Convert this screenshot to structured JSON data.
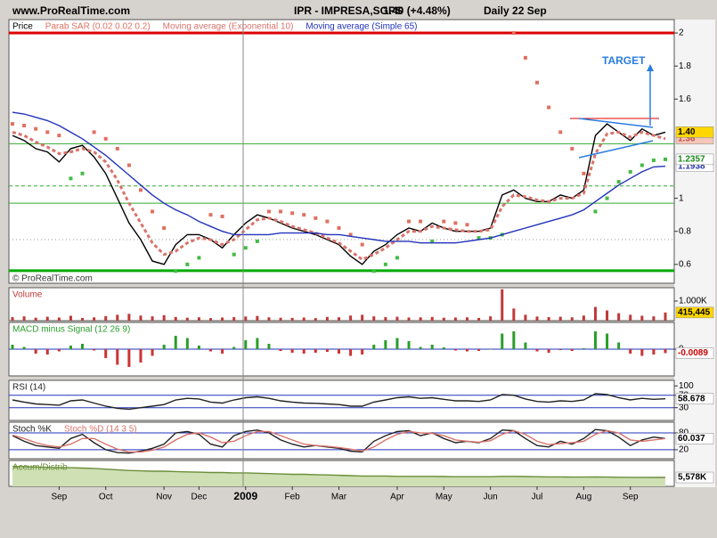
{
  "header": {
    "site": "www.ProRealTime.com",
    "symbol": "IPR - IMPRESA,SGPS",
    "quote": "1.40 (+4.48%)",
    "period": "Daily 22 Sep"
  },
  "chart_data": [
    {
      "type": "line",
      "watermark": "© ProRealTime.com",
      "annotation": "TARGET",
      "categories": [
        null,
        null,
        null,
        null,
        "Sep",
        null,
        null,
        null,
        "Oct",
        null,
        null,
        null,
        null,
        "Nov",
        null,
        null,
        "Dec",
        null,
        null,
        null,
        "2009",
        null,
        null,
        null,
        "Feb",
        null,
        null,
        null,
        "Mar",
        null,
        null,
        null,
        null,
        "Apr",
        null,
        null,
        null,
        "May",
        null,
        null,
        null,
        "Jun",
        null,
        null,
        null,
        "Jul",
        null,
        null,
        null,
        "Aug",
        null,
        null,
        null,
        "Sep",
        null,
        null,
        null
      ],
      "ylim": [
        0.486,
        2.081
      ],
      "yticks": [
        0.6,
        0.8,
        1,
        1.6,
        1.8,
        2
      ],
      "series": [
        {
          "name": "Price",
          "color": "#000000",
          "values": [
            1.38,
            1.35,
            1.3,
            1.28,
            1.22,
            1.3,
            1.32,
            1.25,
            1.15,
            1.0,
            0.85,
            0.75,
            0.62,
            0.6,
            0.72,
            0.78,
            0.78,
            0.75,
            0.7,
            0.78,
            0.85,
            0.9,
            0.88,
            0.85,
            0.82,
            0.8,
            0.78,
            0.75,
            0.72,
            0.65,
            0.6,
            0.68,
            0.72,
            0.78,
            0.82,
            0.8,
            0.85,
            0.82,
            0.8,
            0.8,
            0.8,
            0.82,
            1.02,
            1.05,
            1.0,
            0.98,
            0.98,
            1.02,
            1.0,
            1.05,
            1.38,
            1.45,
            1.4,
            1.35,
            1.42,
            1.38,
            1.4
          ]
        },
        {
          "name": "Parab SAR (0.02 0.02 0.2)",
          "color": "#e07060",
          "color_below": "#44bb44",
          "style": "dots",
          "values": [
            1.45,
            1.44,
            1.42,
            1.4,
            1.38,
            1.12,
            1.15,
            1.4,
            1.36,
            1.3,
            1.2,
            1.05,
            0.92,
            0.82,
            0.56,
            0.6,
            0.64,
            0.9,
            0.89,
            0.66,
            0.7,
            0.74,
            0.92,
            0.92,
            0.91,
            0.9,
            0.88,
            0.86,
            0.82,
            0.78,
            0.72,
            0.56,
            0.6,
            0.64,
            0.86,
            0.86,
            0.74,
            0.86,
            0.85,
            0.84,
            0.76,
            0.76,
            0.78,
            2.0,
            1.85,
            1.7,
            1.55,
            1.4,
            1.3,
            1.15,
            0.92,
            1.0,
            1.1,
            1.16,
            1.2,
            1.23,
            1.2357
          ]
        },
        {
          "name": "Moving average (Exponential 10)",
          "color": "#d9736b",
          "style": "dashed",
          "values": [
            1.4,
            1.38,
            1.34,
            1.31,
            1.27,
            1.28,
            1.3,
            1.28,
            1.22,
            1.11,
            0.97,
            0.85,
            0.73,
            0.66,
            0.68,
            0.73,
            0.76,
            0.75,
            0.72,
            0.75,
            0.81,
            0.87,
            0.88,
            0.86,
            0.83,
            0.81,
            0.79,
            0.76,
            0.73,
            0.68,
            0.63,
            0.66,
            0.7,
            0.75,
            0.8,
            0.8,
            0.83,
            0.82,
            0.81,
            0.8,
            0.8,
            0.81,
            0.95,
            1.02,
            1.01,
            0.99,
            0.98,
            1.0,
            1.0,
            1.03,
            1.27,
            1.39,
            1.4,
            1.37,
            1.4,
            1.38,
            1.36
          ]
        },
        {
          "name": "Moving average (Simple 65)",
          "color": "#2233bb",
          "values": [
            1.52,
            1.51,
            1.49,
            1.47,
            1.44,
            1.4,
            1.36,
            1.31,
            1.26,
            1.2,
            1.14,
            1.08,
            1.02,
            0.97,
            0.93,
            0.9,
            0.86,
            0.83,
            0.8,
            0.78,
            0.78,
            0.78,
            0.78,
            0.79,
            0.79,
            0.79,
            0.79,
            0.78,
            0.78,
            0.77,
            0.76,
            0.75,
            0.74,
            0.74,
            0.74,
            0.73,
            0.73,
            0.73,
            0.73,
            0.74,
            0.75,
            0.76,
            0.78,
            0.8,
            0.82,
            0.84,
            0.86,
            0.88,
            0.9,
            0.93,
            0.98,
            1.03,
            1.08,
            1.12,
            1.16,
            1.19,
            1.194
          ]
        }
      ],
      "hlines": [
        {
          "value": 2,
          "color": "#dd0000"
        },
        {
          "value": 0.562,
          "color": "#00aa00"
        },
        {
          "value": 1.33,
          "color": "#33aa33"
        },
        {
          "value": 0.97,
          "color": "#33aa33"
        },
        {
          "value": 1.075,
          "color": "#33aa33",
          "style": "dashed"
        },
        {
          "value": 0.75,
          "color": "#999999",
          "style": "dotted"
        }
      ],
      "markers": [
        {
          "value": 1.36,
          "label": "1.36",
          "color": "#c0504d",
          "bg": "#f4c7b8"
        },
        {
          "value": 1.4,
          "label": "1.40",
          "color": "#000000",
          "bg": "#ffd700"
        },
        {
          "value": 1.1938,
          "label": "1.1938",
          "color": "#2233aa",
          "bg": "#ffffff"
        },
        {
          "value": 1.2357,
          "label": "1.2357",
          "color": "#1a8a1a",
          "bg": "#ffffff"
        }
      ]
    },
    {
      "type": "bar",
      "ylim": [
        0,
        1680000
      ],
      "yticks": [
        {
          "value": 1000000,
          "label": "1.000K"
        }
      ],
      "series": [
        {
          "name": "Volume",
          "color": "#c03838",
          "values": [
            180000,
            220000,
            150000,
            200000,
            160000,
            250000,
            140000,
            170000,
            230000,
            300000,
            350000,
            260000,
            220000,
            280000,
            190000,
            150000,
            170000,
            130000,
            160000,
            180000,
            210000,
            240000,
            170000,
            150000,
            140000,
            160000,
            130000,
            190000,
            170000,
            260000,
            300000,
            220000,
            180000,
            200000,
            160000,
            170000,
            190000,
            150000,
            160000,
            170000,
            140000,
            220000,
            1600000,
            620000,
            300000,
            210000,
            180000,
            200000,
            170000,
            260000,
            700000,
            520000,
            380000,
            300000,
            250000,
            220000,
            415445
          ]
        }
      ],
      "markers": [
        {
          "value": 415445,
          "label": "415,445",
          "color": "#000000",
          "bg": "#ffd700"
        }
      ]
    },
    {
      "type": "bar",
      "ylim": [
        -0.06,
        0.06
      ],
      "yticks": [
        0
      ],
      "series": [
        {
          "name": "MACD minus Signal (12 26 9)",
          "color": "#2a9d2a",
          "color_negative": "#cc3333",
          "values": [
            0.01,
            0.005,
            -0.01,
            -0.012,
            -0.005,
            0.008,
            0.012,
            -0.003,
            -0.02,
            -0.035,
            -0.04,
            -0.03,
            -0.015,
            0.01,
            0.03,
            0.025,
            0.008,
            -0.005,
            -0.01,
            0.005,
            0.02,
            0.025,
            0.012,
            -0.004,
            -0.008,
            -0.01,
            -0.008,
            -0.006,
            -0.01,
            -0.015,
            -0.012,
            0.01,
            0.02,
            0.025,
            0.018,
            0.005,
            0.01,
            0.004,
            -0.003,
            -0.005,
            -0.004,
            0.0,
            0.035,
            0.04,
            0.015,
            -0.005,
            -0.008,
            -0.002,
            -0.004,
            0.002,
            0.04,
            0.035,
            0.015,
            -0.01,
            -0.015,
            -0.012,
            -0.0089
          ]
        }
      ],
      "hlines": [
        {
          "value": 0,
          "color": "#2233bb"
        }
      ],
      "markers": [
        {
          "value": -0.0089,
          "label": "-0.0089",
          "color": "#cc0000",
          "bg": "#ffffff"
        }
      ]
    },
    {
      "type": "line",
      "ylim": [
        -11,
        118
      ],
      "yticks": [
        30,
        70,
        100
      ],
      "series": [
        {
          "name": "RSI (14)",
          "color": "#222222",
          "values": [
            55,
            48,
            42,
            40,
            38,
            52,
            55,
            45,
            35,
            28,
            25,
            30,
            35,
            40,
            55,
            60,
            58,
            48,
            45,
            55,
            62,
            65,
            60,
            52,
            48,
            45,
            44,
            42,
            40,
            35,
            35,
            48,
            55,
            62,
            65,
            60,
            62,
            57,
            52,
            52,
            50,
            55,
            72,
            70,
            58,
            50,
            48,
            52,
            50,
            55,
            75,
            72,
            62,
            55,
            60,
            57,
            58.678
          ]
        }
      ],
      "hlines": [
        {
          "value": 30,
          "color": "#2233bb"
        },
        {
          "value": 70,
          "color": "#2233bb"
        }
      ],
      "markers": [
        {
          "value": 58.678,
          "label": "58.678",
          "color": "#000000",
          "bg": "#ffffff"
        }
      ]
    },
    {
      "type": "line",
      "ylim": [
        -12,
        118
      ],
      "yticks": [
        20,
        80
      ],
      "series": [
        {
          "name": "Stoch %K",
          "color": "#222222",
          "values": [
            70,
            50,
            35,
            30,
            25,
            60,
            75,
            45,
            20,
            10,
            8,
            15,
            25,
            40,
            80,
            85,
            75,
            40,
            30,
            70,
            85,
            90,
            80,
            55,
            40,
            30,
            35,
            30,
            25,
            15,
            12,
            50,
            70,
            85,
            88,
            70,
            80,
            60,
            45,
            50,
            45,
            60,
            90,
            88,
            60,
            35,
            30,
            50,
            40,
            60,
            92,
            88,
            65,
            35,
            55,
            65,
            60.037
          ]
        },
        {
          "name": "Stoch %D (14 3 5)",
          "color": "#d9736b",
          "values": [
            72,
            60,
            45,
            35,
            30,
            40,
            60,
            60,
            40,
            22,
            12,
            12,
            18,
            30,
            55,
            75,
            80,
            65,
            45,
            50,
            70,
            85,
            85,
            70,
            55,
            40,
            35,
            32,
            28,
            22,
            15,
            30,
            55,
            75,
            85,
            80,
            78,
            70,
            55,
            50,
            47,
            52,
            75,
            88,
            75,
            50,
            38,
            42,
            45,
            50,
            75,
            88,
            80,
            55,
            50,
            55,
            60
          ]
        }
      ],
      "hlines": [
        {
          "value": 20,
          "color": "#2233bb"
        },
        {
          "value": 80,
          "color": "#2233bb"
        }
      ],
      "markers": [
        {
          "value": 60.037,
          "label": "60.037",
          "color": "#000000",
          "bg": "#ffffff"
        }
      ]
    },
    {
      "type": "area",
      "ylim": [
        3000000,
        10500000
      ],
      "series": [
        {
          "name": "Accum/Distrib",
          "color": "#6b8e3a",
          "fill": "#cfe0b4",
          "values": [
            8800000,
            8700000,
            8600000,
            8500000,
            8400000,
            8400000,
            8300000,
            8200000,
            8000000,
            7800000,
            7600000,
            7500000,
            7400000,
            7400000,
            7300000,
            7200000,
            7100000,
            7000000,
            7000000,
            6900000,
            6900000,
            6800000,
            6700000,
            6600000,
            6500000,
            6500000,
            6400000,
            6300000,
            6200000,
            6100000,
            6000000,
            6000000,
            6000000,
            5900000,
            5900000,
            5900000,
            5900000,
            5850000,
            5800000,
            5800000,
            5800000,
            5800000,
            5900000,
            5900000,
            5850000,
            5800000,
            5750000,
            5750000,
            5700000,
            5700000,
            5750000,
            5700000,
            5650000,
            5600000,
            5600000,
            5590000,
            5578000
          ]
        }
      ],
      "markers": [
        {
          "value": 5578000,
          "label": "5,578K",
          "color": "#000000",
          "bg": "#ffffff"
        }
      ]
    }
  ]
}
